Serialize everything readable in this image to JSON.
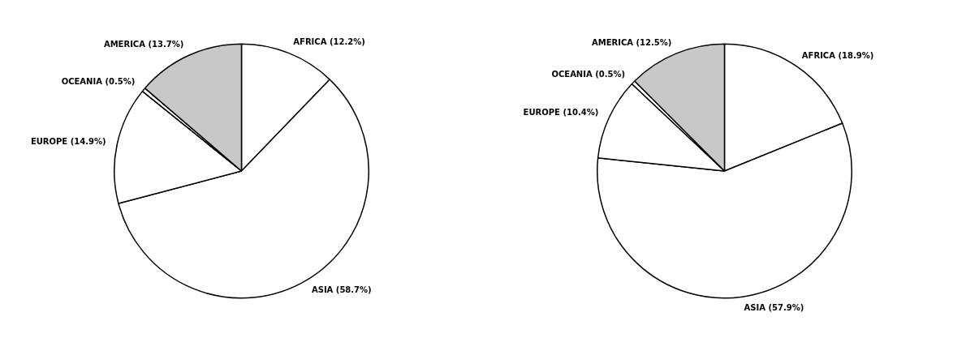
{
  "chart_data": [
    {
      "type": "pie",
      "categories": [
        "AFRICA",
        "ASIA",
        "EUROPE",
        "OCEANIA",
        "AMERICA"
      ],
      "values": [
        12.2,
        58.7,
        14.9,
        0.5,
        13.7
      ],
      "value_labels": [
        "(12.2%)",
        "(58.7%)",
        "(14.9%)",
        "(0.5%)",
        "(13.7%)"
      ],
      "colors": [
        "#ffffff",
        "#ffffff",
        "#ffffff",
        "#ffffff",
        "#c8c8c8"
      ]
    },
    {
      "type": "pie",
      "categories": [
        "AFRICA",
        "ASIA",
        "EUROPE",
        "OCEANIA",
        "AMERICA"
      ],
      "values": [
        18.9,
        57.9,
        10.4,
        0.5,
        12.5
      ],
      "value_labels": [
        "(18.9%)",
        "(57.9%)",
        "(10.4%)",
        "(0.5%)",
        "(12.5%)"
      ],
      "colors": [
        "#ffffff",
        "#ffffff",
        "#ffffff",
        "#ffffff",
        "#c8c8c8"
      ]
    }
  ]
}
